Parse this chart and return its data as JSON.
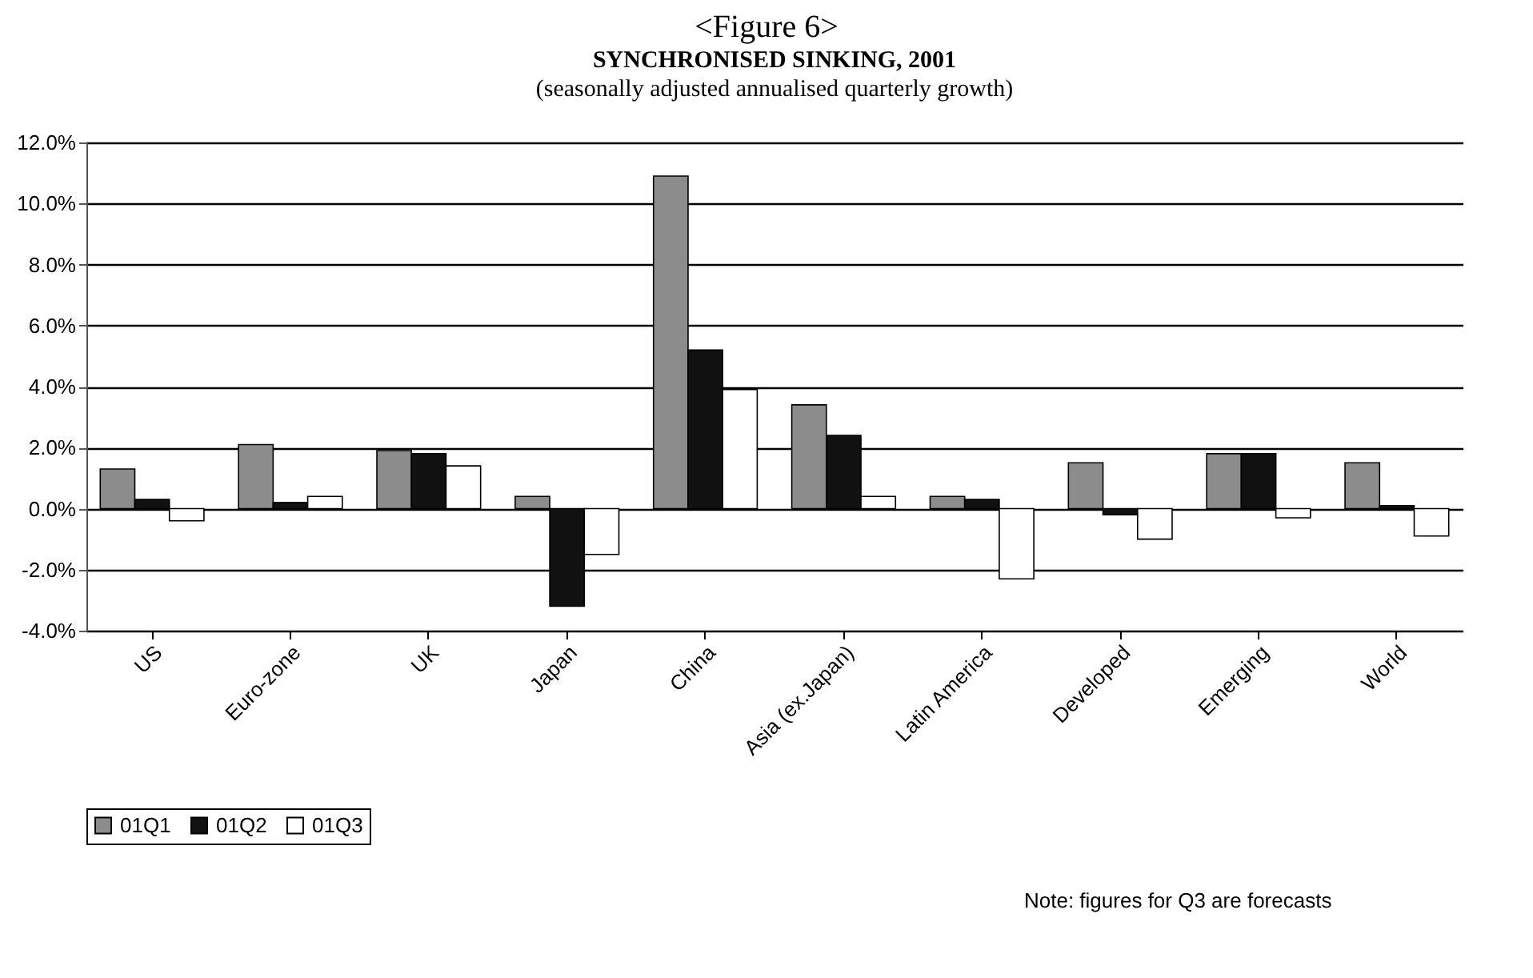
{
  "chart_data": {
    "type": "bar",
    "title": "SYNCHRONISED SINKING, 2001",
    "subtitle": "(seasonally adjusted annualised quarterly growth)",
    "annotations": [
      "<Figure 6>",
      "Note: figures for Q3 are forecasts"
    ],
    "categories": [
      "US",
      "Euro-zone",
      "UK",
      "Japan",
      "China",
      "Asia (ex.Japan)",
      "Latin America",
      "Developed",
      "Emerging",
      "World"
    ],
    "series": [
      {
        "name": "01Q1",
        "color": "#8c8c8c",
        "values": [
          1.3,
          2.1,
          1.9,
          0.4,
          10.9,
          3.4,
          0.4,
          1.5,
          1.8,
          1.5
        ]
      },
      {
        "name": "01Q2",
        "color": "#111111",
        "values": [
          0.3,
          0.2,
          1.8,
          -3.2,
          5.2,
          2.4,
          0.3,
          -0.2,
          1.8,
          0.1
        ]
      },
      {
        "name": "01Q3",
        "color": "#ffffff",
        "values": [
          -0.4,
          0.4,
          1.4,
          -1.5,
          3.9,
          0.4,
          -2.3,
          -1.0,
          -0.3,
          -0.9
        ]
      }
    ],
    "ylim": [
      -4,
      12
    ],
    "yticks": [
      {
        "value": -4,
        "label": "-4.0%"
      },
      {
        "value": -2,
        "label": "-2.0%"
      },
      {
        "value": 0,
        "label": "0.0%"
      },
      {
        "value": 2,
        "label": "2.0%"
      },
      {
        "value": 4,
        "label": "4.0%"
      },
      {
        "value": 6,
        "label": "6.0%"
      },
      {
        "value": 8,
        "label": "8.0%"
      },
      {
        "value": 10,
        "label": "10.0%"
      },
      {
        "value": 12,
        "label": "12.0%"
      }
    ],
    "grid": "y",
    "legend": "bottom"
  }
}
